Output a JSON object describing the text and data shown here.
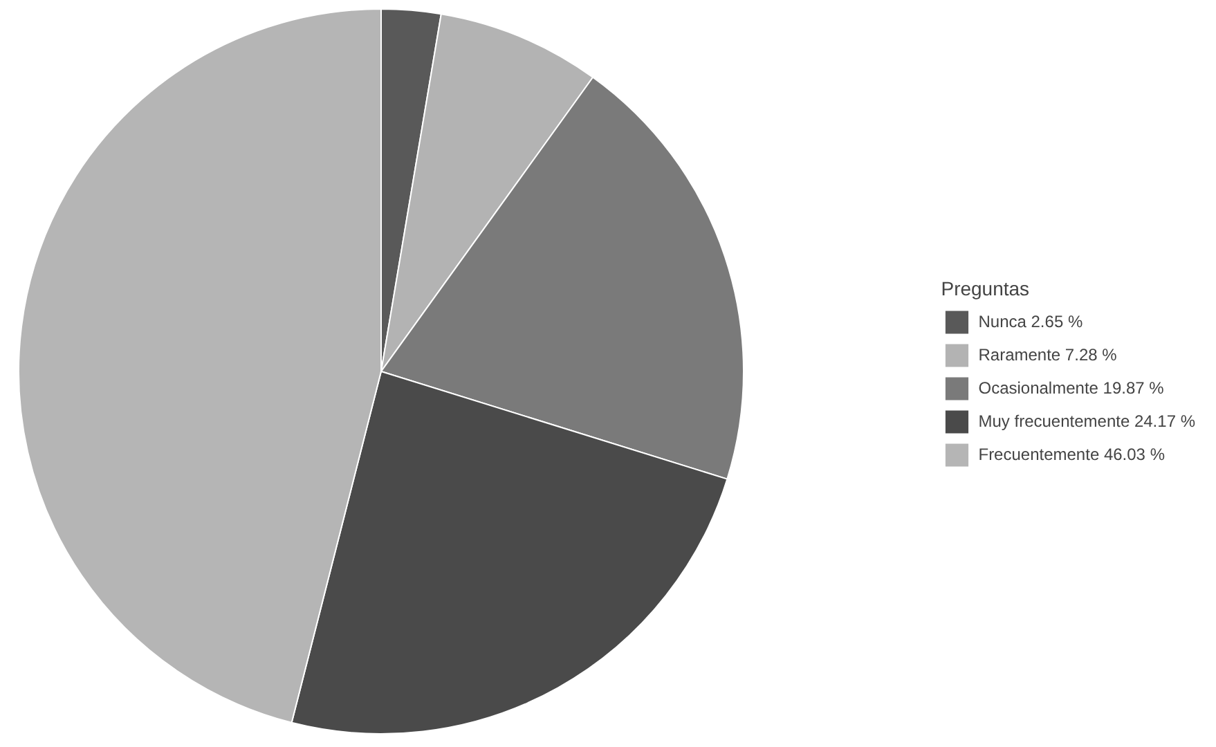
{
  "chart_data": {
    "type": "pie",
    "legend_title": "Preguntas",
    "legend": "right",
    "categories": [
      "Nunca 2.65 %",
      "Raramente 7.28 %",
      "Ocasionalmente 19.87 %",
      "Muy frecuentemente 24.17 %",
      "Frecuentemente 46.03 %"
    ],
    "values": [
      2.65,
      7.28,
      19.87,
      24.17,
      46.03
    ],
    "colors": [
      "#595959",
      "#b3b3b3",
      "#7a7a7a",
      "#4a4a4a",
      "#b5b5b5"
    ]
  }
}
